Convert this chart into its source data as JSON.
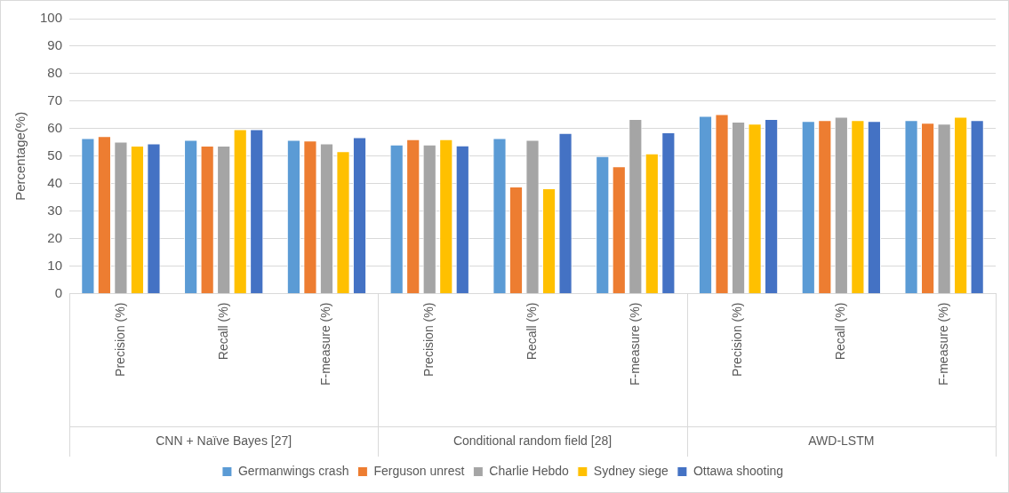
{
  "chart_data": {
    "type": "bar",
    "ylabel": "Percentage(%)",
    "categories": [
      "Precision (%)",
      "Recall (%)",
      "F-measure (%)",
      "Precision (%)",
      "Recall (%)",
      "F-measure (%)",
      "Precision (%)",
      "Recall (%)",
      "F-measure (%)"
    ],
    "annotations": [
      "CNN + Naïve Bayes [27]",
      "Conditional random field [28]",
      "AWD-LSTM"
    ],
    "series": [
      {
        "name": "Germanwings crash",
        "color": "#5b9bd5",
        "values": [
          56.6,
          55.9,
          55.9,
          54.2,
          56.6,
          50.0,
          64.6,
          62.8,
          63.1
        ]
      },
      {
        "name": "Ferguson unrest",
        "color": "#ed7d31",
        "values": [
          57.3,
          53.8,
          55.7,
          56.2,
          39.0,
          46.3,
          65.3,
          63.1,
          62.1
        ]
      },
      {
        "name": "Charlie Hebdo",
        "color": "#a5a5a5",
        "values": [
          55.3,
          53.8,
          54.6,
          54.2,
          55.9,
          63.5,
          62.5,
          64.3,
          61.8
        ]
      },
      {
        "name": "Sydney siege",
        "color": "#ffc000",
        "values": [
          53.8,
          59.8,
          51.8,
          56.2,
          38.3,
          51.0,
          61.8,
          63.1,
          64.3
        ]
      },
      {
        "name": "Ottawa shooting",
        "color": "#4472c4",
        "values": [
          54.6,
          59.8,
          56.9,
          53.9,
          58.4,
          58.7,
          63.5,
          62.8,
          63.1
        ]
      }
    ],
    "ylim": [
      0,
      100
    ],
    "yticks": [
      0,
      10,
      20,
      30,
      40,
      50,
      60,
      70,
      80,
      90,
      100
    ],
    "grid": "y",
    "legend": "bottom"
  }
}
